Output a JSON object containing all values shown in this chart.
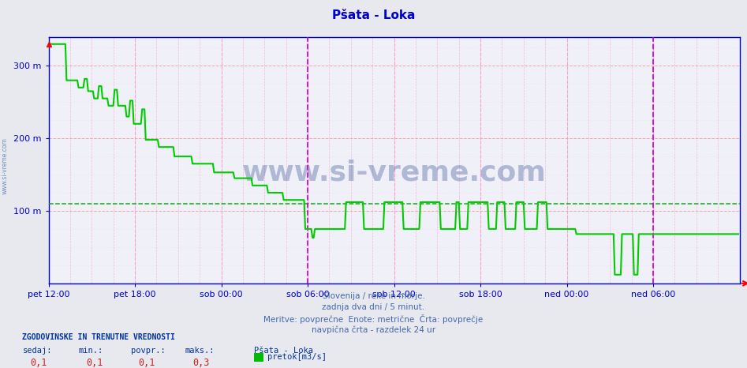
{
  "title": "Pšata - Loka",
  "title_color": "#0000cc",
  "bg_color": "#e8e8ef",
  "plot_bg_color": "#f0f0f8",
  "grid_color_major": "#ff9999",
  "grid_color_minor": "#ffdddd",
  "vline_color_6h": "#ff99cc",
  "vline_color_now": "#cc00cc",
  "avg_line_color": "#00aa00",
  "avg_line_value": 110,
  "yticks": [
    100,
    200,
    300
  ],
  "ytick_labels": [
    "100 m",
    "200 m",
    "300 m"
  ],
  "ylim": [
    0,
    340
  ],
  "x_tick_labels": [
    "pet 12:00",
    "pet 18:00",
    "sob 00:00",
    "sob 06:00",
    "sob 12:00",
    "sob 18:00",
    "ned 00:00",
    "ned 06:00"
  ],
  "axis_color": "#0000cc",
  "tick_color": "#0000cc",
  "watermark": "www.si-vreme.com",
  "watermark_color": "#1a3a8a",
  "footnote_lines": [
    "Slovenija / reke in morje.",
    "zadnja dva dni / 5 minut.",
    "Meritve: povprečne  Enote: metrične  Črta: povprečje",
    "navpična črta - razdelek 24 ur"
  ],
  "footnote_color": "#4466aa",
  "legend_header": "ZGODOVINSKE IN TRENUTNE VREDNOSTI",
  "legend_header_color": "#003399",
  "legend_col_labels": [
    "sedaj:",
    "min.:",
    "povpr.:",
    "maks.:"
  ],
  "legend_col_values": [
    "0,1",
    "0,1",
    "0,1",
    "0,3"
  ],
  "legend_series_name": "Pšata - Loka",
  "legend_series_color": "#00bb00",
  "legend_series_label": "pretok[m3/s]",
  "side_label": "www.si-vreme.com",
  "side_label_color": "#4466aa",
  "line_color": "#00cc00",
  "line_width": 1.5,
  "num_points": 576
}
